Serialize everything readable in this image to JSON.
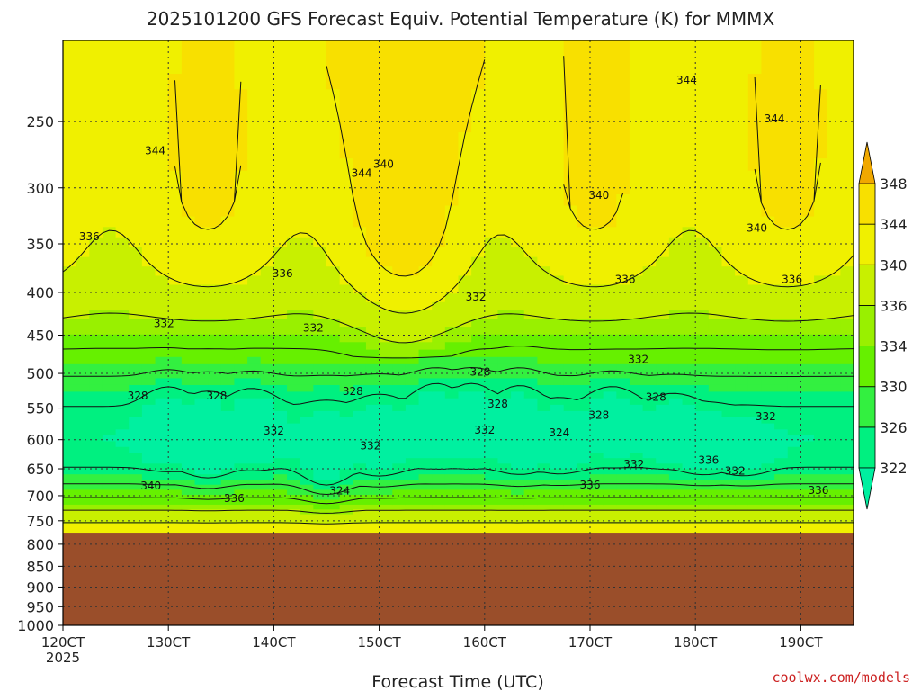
{
  "chart_data": {
    "type": "heatmap",
    "title": "2025101200 GFS Forecast Equiv. Potential Temperature (K) for MMMX",
    "xlabel": "Forecast Time (UTC)",
    "ylabel": "",
    "x_ticks": [
      {
        "label": "120CT",
        "sublabel": "2025",
        "hour": 0
      },
      {
        "label": "130CT",
        "hour": 24
      },
      {
        "label": "140CT",
        "hour": 48
      },
      {
        "label": "150CT",
        "hour": 72
      },
      {
        "label": "160CT",
        "hour": 96
      },
      {
        "label": "170CT",
        "hour": 120
      },
      {
        "label": "180CT",
        "hour": 144
      },
      {
        "label": "190CT",
        "hour": 168
      }
    ],
    "xlim_hours": [
      0,
      180
    ],
    "y_ticks": [
      250,
      300,
      350,
      400,
      450,
      500,
      550,
      600,
      650,
      700,
      750,
      800,
      850,
      900,
      950,
      1000
    ],
    "ylim_hpa": [
      200,
      1000
    ],
    "surface_pressure_hpa": 775,
    "below_ground_color": "#9a4e2a",
    "contour_labels": [
      {
        "text": "344",
        "hour": 68,
        "p": 288
      },
      {
        "text": "344",
        "hour": 21,
        "p": 271
      },
      {
        "text": "344",
        "hour": 142,
        "p": 223
      },
      {
        "text": "344",
        "hour": 162,
        "p": 248
      },
      {
        "text": "340",
        "hour": 73,
        "p": 281
      },
      {
        "text": "340",
        "hour": 122,
        "p": 306
      },
      {
        "text": "340",
        "hour": 158,
        "p": 335
      },
      {
        "text": "336",
        "hour": 6,
        "p": 343
      },
      {
        "text": "336",
        "hour": 50,
        "p": 380
      },
      {
        "text": "336",
        "hour": 128,
        "p": 386
      },
      {
        "text": "336",
        "hour": 166,
        "p": 386
      },
      {
        "text": "332",
        "hour": 23,
        "p": 436
      },
      {
        "text": "332",
        "hour": 57,
        "p": 441
      },
      {
        "text": "332",
        "hour": 94,
        "p": 405
      },
      {
        "text": "332",
        "hour": 131,
        "p": 481
      },
      {
        "text": "328",
        "hour": 17,
        "p": 532
      },
      {
        "text": "328",
        "hour": 35,
        "p": 532
      },
      {
        "text": "328",
        "hour": 66,
        "p": 525
      },
      {
        "text": "328",
        "hour": 95,
        "p": 498
      },
      {
        "text": "328",
        "hour": 99,
        "p": 544
      },
      {
        "text": "328",
        "hour": 122,
        "p": 561
      },
      {
        "text": "328",
        "hour": 135,
        "p": 534
      },
      {
        "text": "332",
        "hour": 48,
        "p": 586
      },
      {
        "text": "332",
        "hour": 70,
        "p": 610
      },
      {
        "text": "332",
        "hour": 96,
        "p": 584
      },
      {
        "text": "324",
        "hour": 113,
        "p": 589
      },
      {
        "text": "332",
        "hour": 130,
        "p": 642
      },
      {
        "text": "336",
        "hour": 147,
        "p": 635
      },
      {
        "text": "332",
        "hour": 153,
        "p": 654
      },
      {
        "text": "332",
        "hour": 160,
        "p": 563
      },
      {
        "text": "324",
        "hour": 63,
        "p": 691
      },
      {
        "text": "340",
        "hour": 20,
        "p": 681
      },
      {
        "text": "336",
        "hour": 39,
        "p": 705
      },
      {
        "text": "336",
        "hour": 120,
        "p": 680
      },
      {
        "text": "336",
        "hour": 172,
        "p": 690
      }
    ],
    "colorbar": {
      "levels": [
        322,
        326,
        330,
        334,
        336,
        340,
        344,
        348
      ],
      "band_colors": [
        "#00f080",
        "#33f040",
        "#66f000",
        "#99f000",
        "#c8f000",
        "#f0f000",
        "#f8e000",
        "#f2b800"
      ],
      "under_color": "#00f0a0",
      "over_color": "#f0a800"
    }
  },
  "footer": {
    "credit": "coolwx.com/models"
  }
}
